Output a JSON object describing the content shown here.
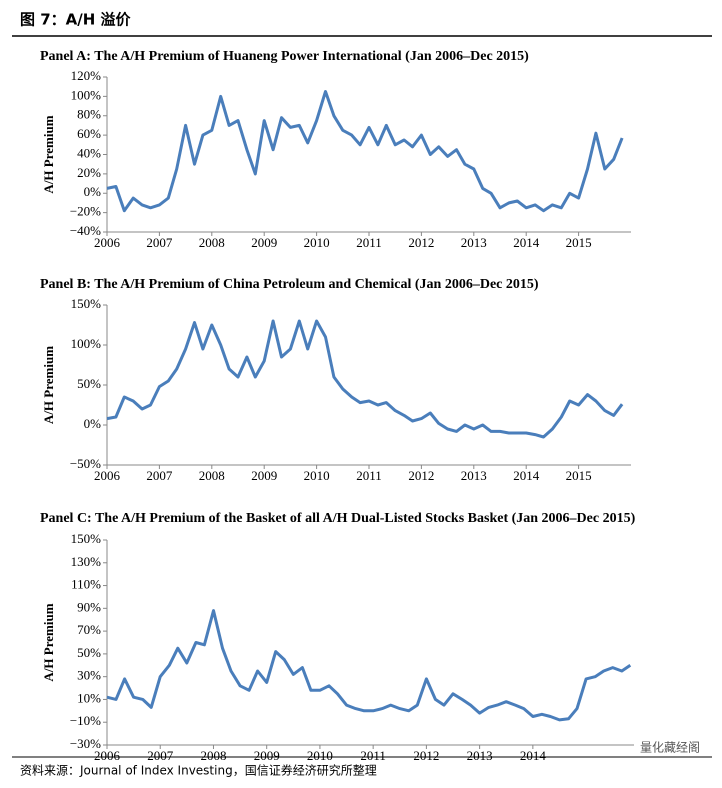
{
  "figure_title": "图 7：A/H 溢价",
  "source": "资料来源：Journal of Index Investing，国信证券经济研究所整理",
  "watermark": "量化藏经阁",
  "chart_data": [
    {
      "type": "line",
      "title": "Panel A: The A/H Premium of Huaneng Power International (Jan 2006–Dec 2015)",
      "y_label": "A/H Premium",
      "color": "#4a7ebb",
      "x": [
        2006,
        2006.17,
        2006.33,
        2006.5,
        2006.67,
        2006.83,
        2007,
        2007.17,
        2007.33,
        2007.5,
        2007.67,
        2007.83,
        2008,
        2008.17,
        2008.33,
        2008.5,
        2008.67,
        2008.83,
        2009,
        2009.17,
        2009.33,
        2009.5,
        2009.67,
        2009.83,
        2010,
        2010.17,
        2010.33,
        2010.5,
        2010.67,
        2010.83,
        2011,
        2011.17,
        2011.33,
        2011.5,
        2011.67,
        2011.83,
        2012,
        2012.17,
        2012.33,
        2012.5,
        2012.67,
        2012.83,
        2013,
        2013.17,
        2013.33,
        2013.5,
        2013.67,
        2013.83,
        2014,
        2014.17,
        2014.33,
        2014.5,
        2014.67,
        2014.83,
        2015,
        2015.17,
        2015.33,
        2015.5,
        2015.67,
        2015.83
      ],
      "values": [
        5,
        7,
        -18,
        -5,
        -12,
        -15,
        -12,
        -5,
        25,
        70,
        30,
        60,
        65,
        100,
        70,
        75,
        45,
        20,
        75,
        45,
        78,
        68,
        70,
        52,
        75,
        105,
        80,
        65,
        60,
        50,
        68,
        50,
        70,
        50,
        55,
        48,
        60,
        40,
        48,
        38,
        45,
        30,
        25,
        5,
        0,
        -15,
        -10,
        -8,
        -15,
        -12,
        -18,
        -12,
        -15,
        0,
        -5,
        25,
        62,
        25,
        35,
        57
      ],
      "xlim": [
        2006,
        2016
      ],
      "xticks": [
        2006,
        2007,
        2008,
        2009,
        2010,
        2011,
        2012,
        2013,
        2014,
        2015
      ],
      "ylim": [
        -40,
        120
      ],
      "yticks": [
        {
          "value": 120,
          "label": "120%"
        },
        {
          "value": 100,
          "label": "100%"
        },
        {
          "value": 80,
          "label": "80%"
        },
        {
          "value": 60,
          "label": "60%"
        },
        {
          "value": 40,
          "label": "40%"
        },
        {
          "value": 20,
          "label": "20%"
        },
        {
          "value": 0,
          "label": "0%"
        },
        {
          "value": -20,
          "label": "−20%"
        },
        {
          "value": -40,
          "label": "−40%"
        }
      ]
    },
    {
      "type": "line",
      "title": "Panel B: The A/H Premium of China Petroleum and Chemical  (Jan 2006–Dec 2015)",
      "y_label": "A/H Premium",
      "color": "#4a7ebb",
      "x": [
        2006,
        2006.17,
        2006.33,
        2006.5,
        2006.67,
        2006.83,
        2007,
        2007.17,
        2007.33,
        2007.5,
        2007.67,
        2007.83,
        2008,
        2008.17,
        2008.33,
        2008.5,
        2008.67,
        2008.83,
        2009,
        2009.17,
        2009.33,
        2009.5,
        2009.67,
        2009.83,
        2010,
        2010.17,
        2010.33,
        2010.5,
        2010.67,
        2010.83,
        2011,
        2011.17,
        2011.33,
        2011.5,
        2011.67,
        2011.83,
        2012,
        2012.17,
        2012.33,
        2012.5,
        2012.67,
        2012.83,
        2013,
        2013.17,
        2013.33,
        2013.5,
        2013.67,
        2013.83,
        2014,
        2014.17,
        2014.33,
        2014.5,
        2014.67,
        2014.83,
        2015,
        2015.17,
        2015.33,
        2015.5,
        2015.67,
        2015.83
      ],
      "values": [
        8,
        10,
        35,
        30,
        20,
        25,
        48,
        55,
        70,
        95,
        128,
        95,
        125,
        100,
        70,
        60,
        85,
        60,
        80,
        130,
        85,
        95,
        130,
        95,
        130,
        110,
        60,
        45,
        35,
        28,
        30,
        25,
        28,
        18,
        12,
        5,
        8,
        15,
        2,
        -5,
        -8,
        0,
        -5,
        0,
        -8,
        -8,
        -10,
        -10,
        -10,
        -12,
        -15,
        -5,
        10,
        30,
        25,
        38,
        30,
        18,
        12,
        26
      ],
      "xlim": [
        2006,
        2016
      ],
      "xticks": [
        2006,
        2007,
        2008,
        2009,
        2010,
        2011,
        2012,
        2013,
        2014,
        2015
      ],
      "ylim": [
        -50,
        150
      ],
      "yticks": [
        {
          "value": 150,
          "label": "150%"
        },
        {
          "value": 100,
          "label": "100%"
        },
        {
          "value": 50,
          "label": "50%"
        },
        {
          "value": 0,
          "label": "0%"
        },
        {
          "value": -50,
          "label": "−50%"
        }
      ]
    },
    {
      "type": "line",
      "title": "Panel C: The A/H Premium of the Basket of all A/H Dual-Listed Stocks Basket (Jan 2006–Dec 2015)",
      "y_label": "A/H Premium",
      "color": "#4a7ebb",
      "x": [
        2006,
        2006.17,
        2006.33,
        2006.5,
        2006.67,
        2006.83,
        2007,
        2007.17,
        2007.33,
        2007.5,
        2007.67,
        2007.83,
        2008,
        2008.17,
        2008.33,
        2008.5,
        2008.67,
        2008.83,
        2009,
        2009.17,
        2009.33,
        2009.5,
        2009.67,
        2009.83,
        2010,
        2010.17,
        2010.33,
        2010.5,
        2010.67,
        2010.83,
        2011,
        2011.17,
        2011.33,
        2011.5,
        2011.67,
        2011.83,
        2012,
        2012.17,
        2012.33,
        2012.5,
        2012.67,
        2012.83,
        2013,
        2013.17,
        2013.33,
        2013.5,
        2013.67,
        2013.83,
        2014,
        2014.17,
        2014.33,
        2014.5,
        2014.67,
        2014.83,
        2015,
        2015.17,
        2015.33,
        2015.5,
        2015.67,
        2015.83
      ],
      "values": [
        12,
        10,
        28,
        12,
        10,
        3,
        30,
        40,
        55,
        42,
        60,
        58,
        88,
        55,
        35,
        22,
        18,
        35,
        25,
        52,
        45,
        32,
        38,
        18,
        18,
        22,
        15,
        5,
        2,
        0,
        0,
        2,
        5,
        2,
        0,
        5,
        28,
        10,
        5,
        15,
        10,
        5,
        -2,
        3,
        5,
        8,
        5,
        2,
        -5,
        -3,
        -5,
        -8,
        -7,
        2,
        28,
        30,
        35,
        38,
        35,
        40
      ],
      "xlim": [
        2006,
        2015.9
      ],
      "xticks": [
        2006,
        2007,
        2008,
        2009,
        2010,
        2011,
        2012,
        2013,
        2014
      ],
      "ylim": [
        -30,
        150
      ],
      "yticks": [
        {
          "value": 150,
          "label": "150%"
        },
        {
          "value": 130,
          "label": "130%"
        },
        {
          "value": 110,
          "label": "110%"
        },
        {
          "value": 90,
          "label": "90%"
        },
        {
          "value": 70,
          "label": "70%"
        },
        {
          "value": 50,
          "label": "50%"
        },
        {
          "value": 30,
          "label": "30%"
        },
        {
          "value": 10,
          "label": "10%"
        },
        {
          "value": -10,
          "label": "−10%"
        },
        {
          "value": -30,
          "label": "−30%"
        }
      ]
    }
  ]
}
